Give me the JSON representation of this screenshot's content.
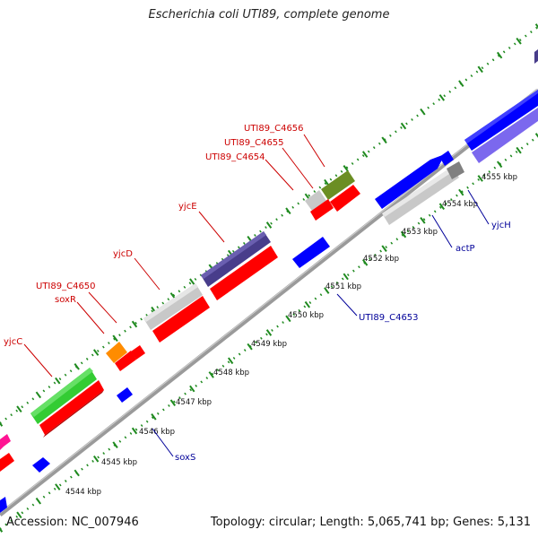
{
  "title": "Escherichia coli UTI89, complete genome",
  "footer": {
    "accession": "Accession: NC_007946",
    "topology": "Topology: circular; Length: 5,065,741 bp; Genes: 5,131"
  },
  "colors": {
    "background": "#ffffff",
    "backbone": "#8c8c8c",
    "tick_green": "#1f8a1f",
    "label_red": "#cc0000",
    "label_blue": "#000099",
    "orf_red": "#ff0000",
    "orf_blue": "#0000ff",
    "orf_green": "#33cc33",
    "orf_orange": "#ff8c00",
    "orf_gray": "#c8c8c8",
    "orf_darkgray": "#808080",
    "orf_olive": "#6b8e23",
    "orf_slate": "#483d8b",
    "orf_lavender": "#7b68ee",
    "orf_magenta": "#ff1493"
  },
  "ticks": [
    {
      "label": "4544 kbp"
    },
    {
      "label": "4545 kbp"
    },
    {
      "label": "4546 kbp"
    },
    {
      "label": "4547 kbp"
    },
    {
      "label": "4548 kbp"
    },
    {
      "label": "4549 kbp"
    },
    {
      "label": "4550 kbp"
    },
    {
      "label": "4551 kbp"
    },
    {
      "label": "4552 kbp"
    },
    {
      "label": "4553 kbp"
    },
    {
      "label": "4554 kbp"
    },
    {
      "label": "4555 kbp"
    }
  ],
  "gene_labels": {
    "forward": [
      "UTI89_C4656",
      "UTI89_C4655",
      "UTI89_C4654",
      "yjcE",
      "yjcD",
      "UTI89_C4650",
      "soxR",
      "yjcC"
    ],
    "reverse": [
      "yjcH",
      "actP",
      "UTI89_C4653",
      "soxS"
    ]
  }
}
